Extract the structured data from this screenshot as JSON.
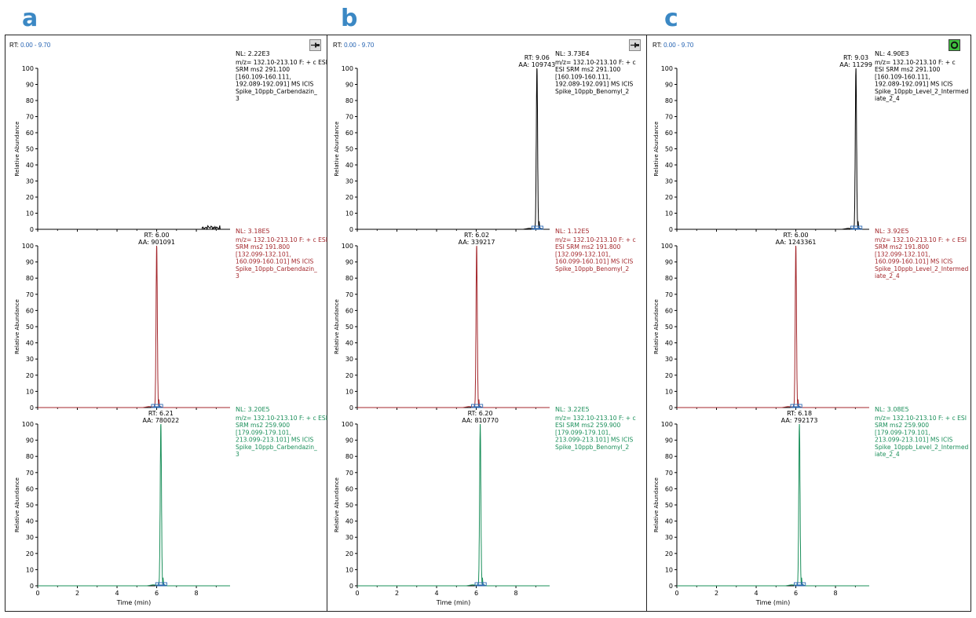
{
  "panels": [
    {
      "letter": "a",
      "rt_label": "RT: ",
      "rt_range": "0.00 - 9.70",
      "icon": "pushpin-icon",
      "traces": [
        {
          "color": "#000000",
          "nl": "NL: 2.22E3",
          "header": [
            "m/z= 132.10-213.10 F: + c ESI",
            "SRM ms2 291.100",
            "[160.109-160.111,",
            "192.089-192.091]  MS  ICIS",
            "Spike_10ppb_Carbendazin_",
            "3"
          ],
          "peak_label": null,
          "peak": null,
          "noise": {
            "from": 8.3,
            "to": 9.2,
            "level": 2.5
          }
        },
        {
          "color": "#a3262b",
          "nl": "NL: 3.18E5",
          "header": [
            "m/z= 132.10-213.10 F: + c ESI",
            "SRM ms2 191.800",
            "[132.099-132.101,",
            "160.099-160.101]  MS  ICIS",
            "Spike_10ppb_Carbendazin_",
            "3"
          ],
          "peak_label": [
            "RT: 6.00",
            "AA: 901091"
          ],
          "peak": {
            "rt": 6.0,
            "height": 100,
            "width": 0.07
          },
          "noise": null
        },
        {
          "color": "#1a8f5a",
          "nl": "NL: 3.20E5",
          "header": [
            "m/z= 132.10-213.10 F: + c ESI",
            "SRM ms2 259.900",
            "[179.099-179.101,",
            "213.099-213.101]  MS  ICIS",
            "Spike_10ppb_Carbendazin_",
            "3"
          ],
          "peak_label": [
            "RT: 6.21",
            "AA: 780022"
          ],
          "peak": {
            "rt": 6.21,
            "height": 100,
            "width": 0.07
          },
          "noise": null
        }
      ]
    },
    {
      "letter": "b",
      "rt_label": "RT: ",
      "rt_range": "0.00 - 9.70",
      "icon": "pushpin-icon",
      "traces": [
        {
          "color": "#000000",
          "nl": "NL: 3.73E4",
          "header": [
            "m/z= 132.10-213.10 F: + c",
            "ESI SRM ms2 291.100",
            "[160.109-160.111,",
            "192.089-192.091]  MS  ICIS",
            "Spike_10ppb_Benomyl_2"
          ],
          "peak_label": [
            "RT: 9.06",
            "AA: 109743"
          ],
          "peak": {
            "rt": 9.06,
            "height": 100,
            "width": 0.07
          },
          "noise": null
        },
        {
          "color": "#a3262b",
          "nl": "NL: 1.12E5",
          "header": [
            "m/z= 132.10-213.10 F: + c",
            "ESI SRM ms2 191.800",
            "[132.099-132.101,",
            "160.099-160.101]  MS  ICIS",
            "Spike_10ppb_Benomyl_2"
          ],
          "peak_label": [
            "RT: 6.02",
            "AA: 339217"
          ],
          "peak": {
            "rt": 6.02,
            "height": 100,
            "width": 0.07
          },
          "noise": null
        },
        {
          "color": "#1a8f5a",
          "nl": "NL: 3.22E5",
          "header": [
            "m/z= 132.10-213.10 F: + c",
            "ESI SRM ms2 259.900",
            "[179.099-179.101,",
            "213.099-213.101]  MS  ICIS",
            "Spike_10ppb_Benomyl_2"
          ],
          "peak_label": [
            "RT: 6.20",
            "AA: 810770"
          ],
          "peak": {
            "rt": 6.2,
            "height": 100,
            "width": 0.07
          },
          "noise": null
        }
      ]
    },
    {
      "letter": "c",
      "rt_label": "RT: ",
      "rt_range": "0.00 - 9.70",
      "icon": "green-ring-icon",
      "traces": [
        {
          "color": "#000000",
          "nl": "NL: 4.90E3",
          "header": [
            "m/z= 132.10-213.10 F: + c",
            "ESI SRM ms2 291.100",
            "[160.109-160.111,",
            "192.089-192.091]  MS  ICIS",
            "Spike_10ppb_Level_2_Intermed",
            "iate_2_4"
          ],
          "peak_label": [
            "RT: 9.03",
            "AA: 11299"
          ],
          "peak": {
            "rt": 9.03,
            "height": 100,
            "width": 0.07
          },
          "noise": null
        },
        {
          "color": "#a3262b",
          "nl": "NL: 3.92E5",
          "header": [
            "m/z= 132.10-213.10 F: + c ESI",
            "SRM ms2 191.800",
            "[132.099-132.101,",
            "160.099-160.101]  MS  ICIS",
            "Spike_10ppb_Level_2_Intermed",
            "iate_2_4"
          ],
          "peak_label": [
            "RT: 6.00",
            "AA: 1243361"
          ],
          "peak": {
            "rt": 6.0,
            "height": 100,
            "width": 0.07
          },
          "noise": null
        },
        {
          "color": "#1a8f5a",
          "nl": "NL: 3.08E5",
          "header": [
            "m/z= 132.10-213.10 F: + c ESI",
            "SRM ms2 259.900",
            "[179.099-179.101,",
            "213.099-213.101]  MS  ICIS",
            "Spike_10ppb_Level_2_Intermed",
            "iate_2_4"
          ],
          "peak_label": [
            "RT: 6.18",
            "AA: 792173"
          ],
          "peak": {
            "rt": 6.18,
            "height": 100,
            "width": 0.07
          },
          "noise": null
        }
      ]
    }
  ],
  "chart_data": {
    "type": "line",
    "xlabel": "Time (min)",
    "ylabel": "Relative Abundance",
    "xlim": [
      0,
      9.7
    ],
    "ylim": [
      0,
      100
    ],
    "xticks": [
      0,
      2,
      4,
      6,
      8
    ],
    "yticks": [
      0,
      10,
      20,
      30,
      40,
      50,
      60,
      70,
      80,
      90,
      100
    ],
    "grid": false,
    "legend": "none"
  }
}
